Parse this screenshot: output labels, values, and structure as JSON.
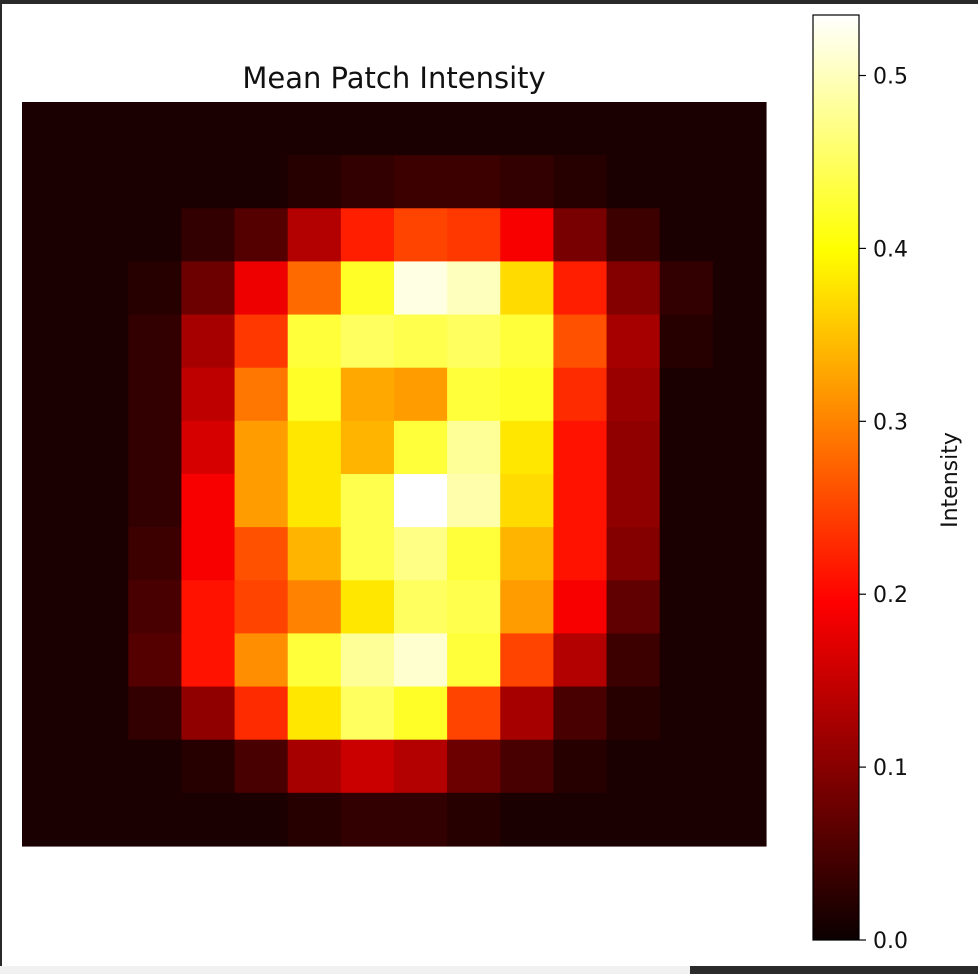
{
  "chart_data": {
    "type": "heatmap",
    "title": "Mean Patch Intensity",
    "colormap": "hot",
    "colorbar": {
      "label": "Intensity",
      "range": [
        0.0,
        0.535
      ],
      "ticks": [
        {
          "value": 0.0,
          "label": "0.0"
        },
        {
          "value": 0.1,
          "label": "0.1"
        },
        {
          "value": 0.2,
          "label": "0.2"
        },
        {
          "value": 0.3,
          "label": "0.3"
        },
        {
          "value": 0.4,
          "label": "0.4"
        },
        {
          "value": 0.5,
          "label": "0.5"
        }
      ]
    },
    "rows": 14,
    "cols": 14,
    "values": [
      [
        0.0,
        0.0,
        0.0,
        0.0,
        0.0,
        0.0,
        0.0,
        0.0,
        0.0,
        0.0,
        0.0,
        0.0,
        0.0,
        0.0
      ],
      [
        0.0,
        0.0,
        0.0,
        0.0,
        0.0,
        0.01,
        0.02,
        0.03,
        0.03,
        0.02,
        0.01,
        0.0,
        0.0,
        0.0
      ],
      [
        0.0,
        0.0,
        0.0,
        0.02,
        0.05,
        0.13,
        0.22,
        0.25,
        0.24,
        0.19,
        0.08,
        0.03,
        0.0,
        0.0
      ],
      [
        0.0,
        0.0,
        0.01,
        0.07,
        0.18,
        0.28,
        0.42,
        0.52,
        0.5,
        0.37,
        0.22,
        0.09,
        0.02,
        0.0
      ],
      [
        0.0,
        0.0,
        0.02,
        0.12,
        0.24,
        0.43,
        0.45,
        0.44,
        0.45,
        0.43,
        0.26,
        0.12,
        0.01,
        0.0
      ],
      [
        0.0,
        0.0,
        0.02,
        0.14,
        0.29,
        0.42,
        0.33,
        0.32,
        0.43,
        0.42,
        0.23,
        0.11,
        0.0,
        0.0
      ],
      [
        0.0,
        0.0,
        0.02,
        0.16,
        0.32,
        0.38,
        0.34,
        0.43,
        0.48,
        0.38,
        0.21,
        0.1,
        0.0,
        0.0
      ],
      [
        0.0,
        0.0,
        0.02,
        0.19,
        0.32,
        0.38,
        0.44,
        0.535,
        0.49,
        0.37,
        0.21,
        0.1,
        0.0,
        0.0
      ],
      [
        0.0,
        0.0,
        0.03,
        0.19,
        0.26,
        0.34,
        0.44,
        0.47,
        0.43,
        0.34,
        0.21,
        0.09,
        0.0,
        0.0
      ],
      [
        0.0,
        0.0,
        0.04,
        0.21,
        0.25,
        0.3,
        0.38,
        0.45,
        0.44,
        0.32,
        0.19,
        0.06,
        0.0,
        0.0
      ],
      [
        0.0,
        0.0,
        0.05,
        0.21,
        0.31,
        0.43,
        0.48,
        0.51,
        0.43,
        0.25,
        0.13,
        0.03,
        0.0,
        0.0
      ],
      [
        0.0,
        0.0,
        0.02,
        0.1,
        0.23,
        0.38,
        0.45,
        0.42,
        0.25,
        0.12,
        0.04,
        0.01,
        0.0,
        0.0
      ],
      [
        0.0,
        0.0,
        0.0,
        0.01,
        0.04,
        0.12,
        0.15,
        0.13,
        0.07,
        0.04,
        0.01,
        0.0,
        0.0,
        0.0
      ],
      [
        0.0,
        0.0,
        0.0,
        0.0,
        0.0,
        0.01,
        0.02,
        0.02,
        0.01,
        0.0,
        0.0,
        0.0,
        0.0,
        0.0
      ]
    ]
  }
}
